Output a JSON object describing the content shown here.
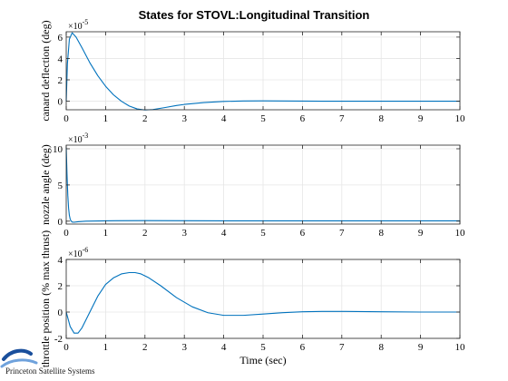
{
  "figure": {
    "title": "States for STOVL:Longitudinal Transition",
    "xlabel": "Time (sec)",
    "logo_text": "Princeton Satellite Systems",
    "colors": {
      "line": "#0072bd",
      "grid": "#e6e6e6",
      "axis": "#262626",
      "background": "#ffffff"
    }
  },
  "chart_data": [
    {
      "type": "line",
      "title": "",
      "xlabel": "",
      "ylabel": "canard deflection (deg)",
      "exponent_label": "×10",
      "exponent_power": "-5",
      "xlim": [
        0,
        10
      ],
      "ylim": [
        -0.8,
        6.5
      ],
      "xticks": [
        0,
        1,
        2,
        3,
        4,
        5,
        6,
        7,
        8,
        9,
        10
      ],
      "xtick_labels": [
        "0",
        "1",
        "2",
        "3",
        "4",
        "5",
        "6",
        "7",
        "8",
        "9",
        "10"
      ],
      "yticks": [
        0,
        2,
        4,
        6
      ],
      "ytick_labels": [
        "0",
        "2",
        "4",
        "6"
      ],
      "grid": true,
      "series": [
        {
          "x": [
            0,
            0.03,
            0.08,
            0.15,
            0.25,
            0.4,
            0.6,
            0.8,
            1.0,
            1.2,
            1.4,
            1.6,
            1.8,
            2.0,
            2.2,
            2.5,
            2.8,
            3.0,
            3.5,
            4.0,
            4.5,
            5.0,
            5.5,
            6.0,
            6.5,
            7.0,
            8.0,
            9.0,
            10.0
          ],
          "y": [
            0.0,
            3.5,
            5.8,
            6.4,
            6.0,
            5.0,
            3.6,
            2.4,
            1.4,
            0.6,
            0.0,
            -0.45,
            -0.72,
            -0.82,
            -0.78,
            -0.6,
            -0.4,
            -0.3,
            -0.13,
            -0.02,
            0.02,
            0.03,
            0.02,
            0.01,
            0.0,
            0.0,
            0.0,
            0.0,
            0.0
          ]
        }
      ]
    },
    {
      "type": "line",
      "title": "",
      "xlabel": "",
      "ylabel": "nozzle angle (deg)",
      "exponent_label": "×10",
      "exponent_power": "-3",
      "xlim": [
        0,
        10
      ],
      "ylim": [
        -0.4,
        10.5
      ],
      "xticks": [
        0,
        1,
        2,
        3,
        4,
        5,
        6,
        7,
        8,
        9,
        10
      ],
      "xtick_labels": [
        "0",
        "1",
        "2",
        "3",
        "4",
        "5",
        "6",
        "7",
        "8",
        "9",
        "10"
      ],
      "yticks": [
        0,
        5,
        10
      ],
      "ytick_labels": [
        "0",
        "5",
        "10"
      ],
      "grid": true,
      "series": [
        {
          "x": [
            0,
            0.02,
            0.04,
            0.06,
            0.08,
            0.1,
            0.12,
            0.15,
            0.2,
            0.3,
            0.5,
            1.0,
            2.0,
            3.0,
            4.0,
            5.0,
            6.0,
            8.0,
            10.0
          ],
          "y": [
            10.2,
            6.5,
            3.6,
            1.8,
            0.8,
            0.3,
            0.05,
            -0.12,
            -0.15,
            -0.08,
            0.0,
            0.05,
            0.08,
            0.06,
            0.05,
            0.05,
            0.05,
            0.05,
            0.05
          ]
        }
      ]
    },
    {
      "type": "line",
      "title": "",
      "xlabel": "",
      "ylabel": "throttle position (% max thrust)",
      "exponent_label": "×10",
      "exponent_power": "-6",
      "xlim": [
        0,
        10
      ],
      "ylim": [
        -2,
        4
      ],
      "xticks": [
        0,
        1,
        2,
        3,
        4,
        5,
        6,
        7,
        8,
        9,
        10
      ],
      "xtick_labels": [
        "0",
        "1",
        "2",
        "3",
        "4",
        "5",
        "6",
        "7",
        "8",
        "9",
        "10"
      ],
      "yticks": [
        -2,
        0,
        2,
        4
      ],
      "ytick_labels": [
        "-2",
        "0",
        "2",
        "4"
      ],
      "grid": true,
      "series": [
        {
          "x": [
            0,
            0.1,
            0.2,
            0.3,
            0.4,
            0.6,
            0.8,
            1.0,
            1.2,
            1.4,
            1.6,
            1.75,
            1.9,
            2.1,
            2.4,
            2.8,
            3.2,
            3.6,
            4.0,
            4.5,
            5.0,
            5.5,
            6.0,
            6.5,
            7.0,
            8.0,
            9.0,
            10.0
          ],
          "y": [
            0.0,
            -1.1,
            -1.6,
            -1.6,
            -1.2,
            0.0,
            1.2,
            2.1,
            2.6,
            2.9,
            3.0,
            3.0,
            2.9,
            2.6,
            2.0,
            1.1,
            0.4,
            -0.05,
            -0.25,
            -0.25,
            -0.15,
            -0.05,
            0.02,
            0.05,
            0.05,
            0.02,
            0.0,
            0.0
          ]
        }
      ]
    }
  ]
}
